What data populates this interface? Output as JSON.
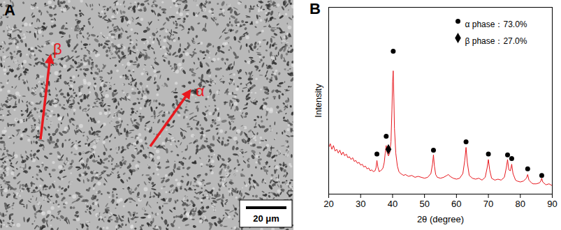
{
  "image": {
    "label": "A",
    "annotations": [
      {
        "text": "β",
        "color": "#e8191f"
      },
      {
        "text": "α",
        "color": "#e8191f"
      }
    ],
    "scale_bar": "20 μm"
  },
  "chart_data": {
    "type": "line",
    "panel": "B",
    "x_label": "2θ (degree)",
    "y_label": "Intensity",
    "xlim": [
      20,
      90
    ],
    "xticks": [
      20,
      30,
      40,
      50,
      60,
      70,
      80,
      90
    ],
    "ylim": [
      0,
      100
    ],
    "tick_labels": "x",
    "legend": "top-right",
    "series": [
      {
        "type": "line",
        "color": "#e8191f",
        "x": [
          20,
          20.5,
          21,
          21.5,
          22,
          22.5,
          23,
          23.5,
          24,
          24.5,
          25,
          25.5,
          26,
          26.5,
          27,
          27.5,
          28,
          28.5,
          29,
          29.5,
          30,
          30.5,
          31,
          31.5,
          32,
          32.5,
          33,
          33.5,
          34,
          34.5,
          34.8,
          35.1,
          35.4,
          35.8,
          36.2,
          36.6,
          37,
          37.4,
          37.7,
          38.0,
          38.3,
          38.7,
          39.1,
          39.5,
          39.8,
          40.0,
          40.2,
          40.4,
          40.6,
          41,
          41.5,
          42,
          42.5,
          43,
          43.5,
          44,
          45,
          46,
          47,
          48,
          49,
          50,
          51,
          52,
          52.5,
          52.8,
          53.1,
          53.5,
          54,
          55,
          56,
          57,
          57.5,
          58,
          59,
          60,
          61,
          62,
          62.6,
          63,
          63.4,
          64,
          65,
          66,
          67,
          68,
          69,
          69.6,
          70,
          70.4,
          71,
          72,
          73,
          74,
          75,
          75.6,
          76,
          76.4,
          76.9,
          77.3,
          77.7,
          78.5,
          79,
          80,
          81,
          81.9,
          82.3,
          82.7,
          83.5,
          84,
          85,
          86,
          86.4,
          86.7,
          87,
          88,
          89,
          90
        ],
        "values": [
          25,
          27,
          24,
          26,
          23,
          24,
          22,
          23.5,
          21,
          22.5,
          20.5,
          21.5,
          19.5,
          20,
          18.5,
          19.5,
          17.5,
          18,
          16.5,
          17,
          15.5,
          16,
          14.5,
          15,
          13.5,
          14,
          12.5,
          13,
          12,
          12.5,
          14,
          18,
          14.5,
          12,
          12.5,
          13,
          14,
          17,
          22,
          26,
          22,
          20.5,
          22,
          28,
          45,
          60,
          66,
          52,
          35,
          22,
          15,
          12,
          11,
          10.5,
          10,
          10.5,
          9.5,
          10,
          9,
          9.5,
          9,
          8.5,
          9,
          11,
          16,
          21,
          15,
          10.5,
          9,
          8.5,
          9,
          10,
          10.5,
          9.5,
          8.5,
          8,
          8.5,
          11,
          18,
          25,
          17,
          10,
          8.5,
          8,
          8.5,
          7.5,
          9,
          14,
          18.5,
          13,
          8.5,
          7.5,
          8,
          7.5,
          9,
          14,
          18.5,
          13,
          12.5,
          16,
          11,
          7.5,
          7,
          6.5,
          7,
          8.5,
          10.5,
          7.5,
          6,
          5.5,
          5.5,
          6,
          7,
          8.5,
          6.5,
          5,
          5.5,
          4.5
        ]
      },
      {
        "type": "scatter",
        "name": "α phase：73.0%",
        "marker": "circle",
        "color": "#000000",
        "x": [
          35.1,
          38.0,
          40.2,
          52.8,
          63,
          70,
          76,
          77.3,
          82.3,
          86.7
        ],
        "values": [
          21.5,
          31,
          76.5,
          23.5,
          28,
          21.5,
          21,
          19,
          13.5,
          10
        ]
      },
      {
        "type": "scatter",
        "name": "β phase：27.0%",
        "marker": "diamond",
        "color": "#000000",
        "x": [
          38.7
        ],
        "values": [
          24
        ]
      }
    ]
  }
}
